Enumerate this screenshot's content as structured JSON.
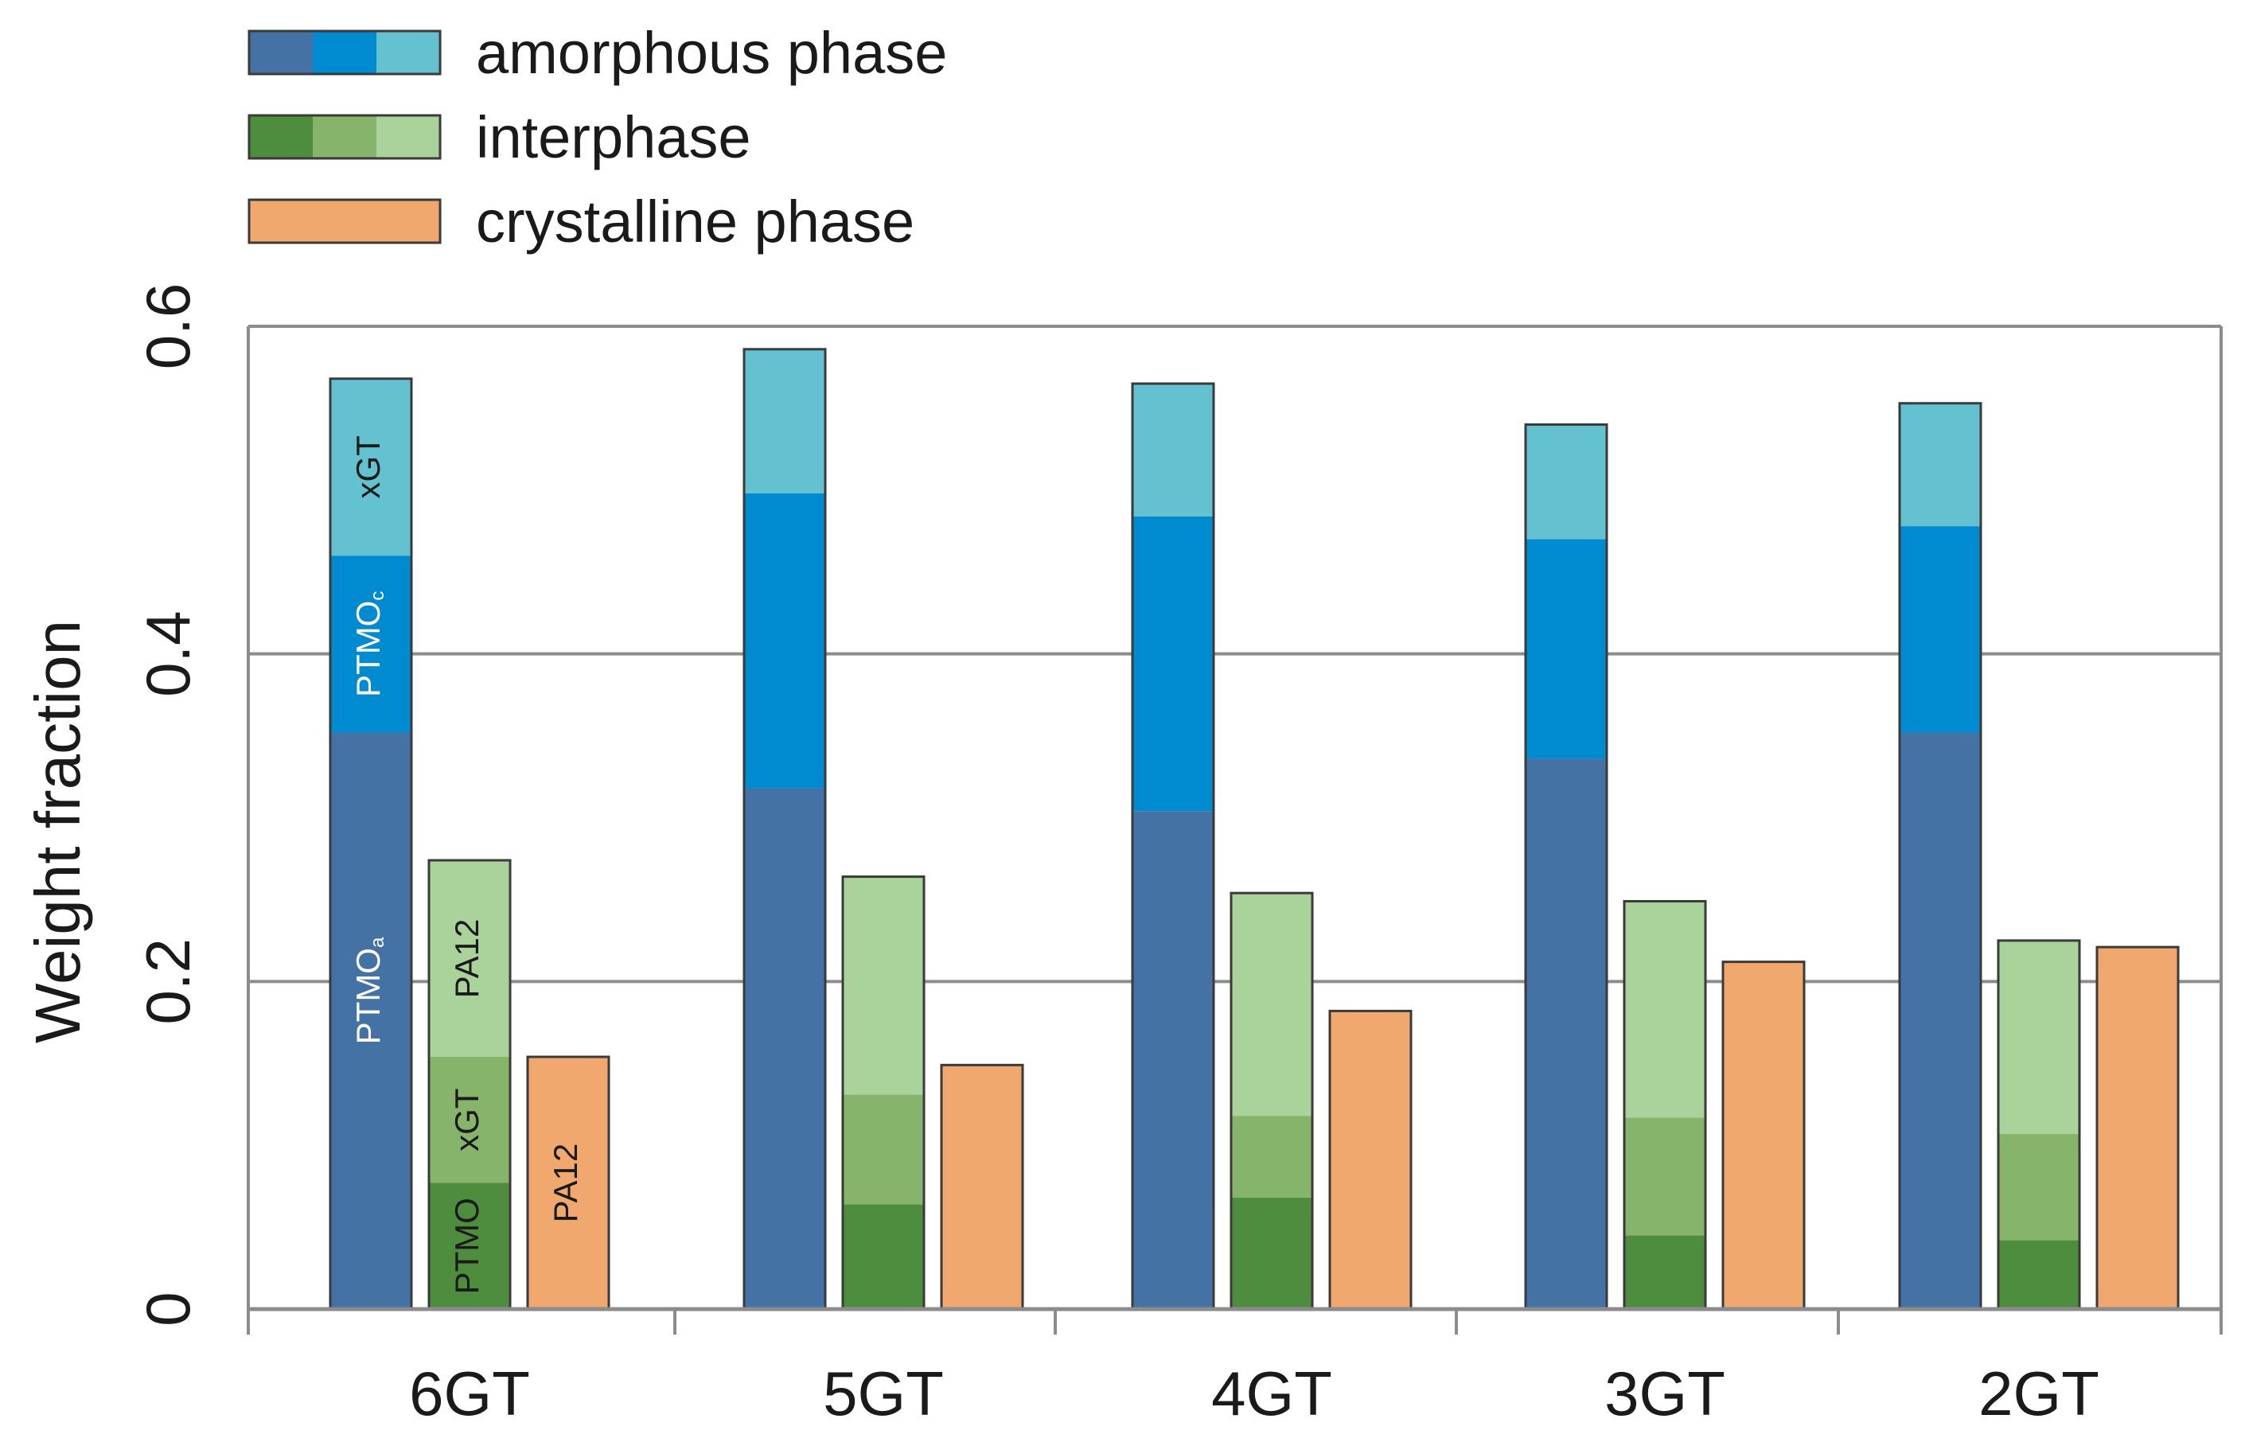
{
  "chart_data": {
    "type": "bar",
    "ylabel": "Weight fraction",
    "xlabel": "",
    "ylim": [
      0,
      0.6
    ],
    "yticks": [
      0,
      0.2,
      0.4,
      0.6
    ],
    "ytick_labels": [
      "0",
      "0.2",
      "0.4",
      "0.6"
    ],
    "grid": true,
    "legend_position": "top-left",
    "categories": [
      "6GT",
      "5GT",
      "4GT",
      "3GT",
      "2GT"
    ],
    "legend": [
      {
        "label": "amorphous phase",
        "colors": [
          "#4472A4",
          "#008AD0",
          "#63C1D0"
        ]
      },
      {
        "label": "interphase",
        "colors": [
          "#4E8C3E",
          "#86B46A",
          "#A9D39A"
        ]
      },
      {
        "label": "crystalline phase",
        "colors": [
          "#F0A86F"
        ]
      }
    ],
    "series": [
      {
        "phase": "amorphous phase",
        "component": "PTMOa",
        "color": "#4472A4",
        "values": [
          0.352,
          0.318,
          0.304,
          0.336,
          0.352
        ]
      },
      {
        "phase": "amorphous phase",
        "component": "PTMOc",
        "color": "#008AD0",
        "values": [
          0.108,
          0.18,
          0.18,
          0.134,
          0.126
        ]
      },
      {
        "phase": "amorphous phase",
        "component": "xGT",
        "color": "#63C1D0",
        "values": [
          0.108,
          0.088,
          0.081,
          0.07,
          0.075
        ]
      },
      {
        "phase": "interphase",
        "component": "PTMO",
        "color": "#4E8C3E",
        "values": [
          0.077,
          0.064,
          0.068,
          0.045,
          0.042
        ]
      },
      {
        "phase": "interphase",
        "component": "xGT",
        "color": "#86B46A",
        "values": [
          0.077,
          0.067,
          0.05,
          0.072,
          0.065
        ]
      },
      {
        "phase": "interphase",
        "component": "PA12",
        "color": "#A9D39A",
        "values": [
          0.12,
          0.133,
          0.136,
          0.132,
          0.118
        ]
      },
      {
        "phase": "crystalline phase",
        "component": "PA12",
        "color": "#F0A86F",
        "values": [
          0.154,
          0.149,
          0.182,
          0.212,
          0.221
        ]
      }
    ],
    "annotations": {
      "amorphous": [
        {
          "series": 0,
          "text": "PTMO",
          "sub": "a",
          "color": "#ffffff"
        },
        {
          "series": 1,
          "text": "PTMO",
          "sub": "c",
          "color": "#ffffff"
        },
        {
          "series": 2,
          "text": "xGT",
          "sub": "",
          "color": "#1a1a1a"
        }
      ],
      "interphase": [
        {
          "series": 3,
          "text": "PTMO",
          "sub": "",
          "color": "#1a1a1a"
        },
        {
          "series": 4,
          "text": "xGT",
          "sub": "",
          "color": "#1a1a1a"
        },
        {
          "series": 5,
          "text": "PA12",
          "sub": "",
          "color": "#1a1a1a"
        }
      ],
      "crystalline": {
        "text": "PA12",
        "color": "#1a1a1a"
      }
    }
  }
}
